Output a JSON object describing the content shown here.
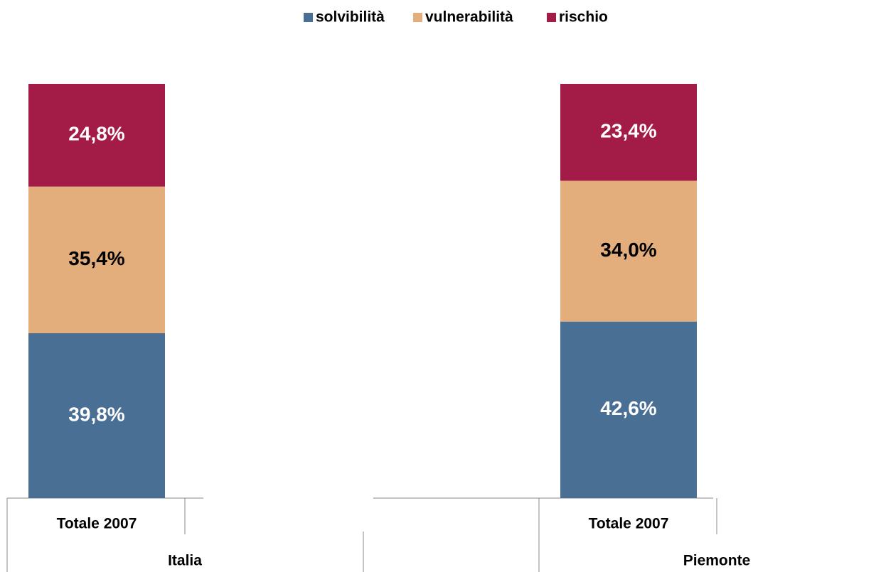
{
  "chart_data": {
    "type": "stacked_bar",
    "categories": [
      "Totale 2007",
      "Totale 2007"
    ],
    "groups": [
      "Italia",
      "Piemonte"
    ],
    "ylim": [
      0,
      100
    ],
    "series": [
      {
        "name": "solvibilità",
        "color": "#4a6f94",
        "label_color": "#ffffff",
        "values": [
          39.8,
          42.6
        ],
        "value_labels": [
          "39,8%",
          "42,6%"
        ]
      },
      {
        "name": "vulnerabilità",
        "color": "#e3ae7b",
        "label_color": "#000000",
        "values": [
          35.4,
          34.0
        ],
        "value_labels": [
          "35,4%",
          "34,0%"
        ]
      },
      {
        "name": "rischio",
        "color": "#a31c47",
        "label_color": "#ffffff",
        "values": [
          24.8,
          23.4
        ],
        "value_labels": [
          "24,8%",
          "23,4%"
        ]
      }
    ]
  }
}
